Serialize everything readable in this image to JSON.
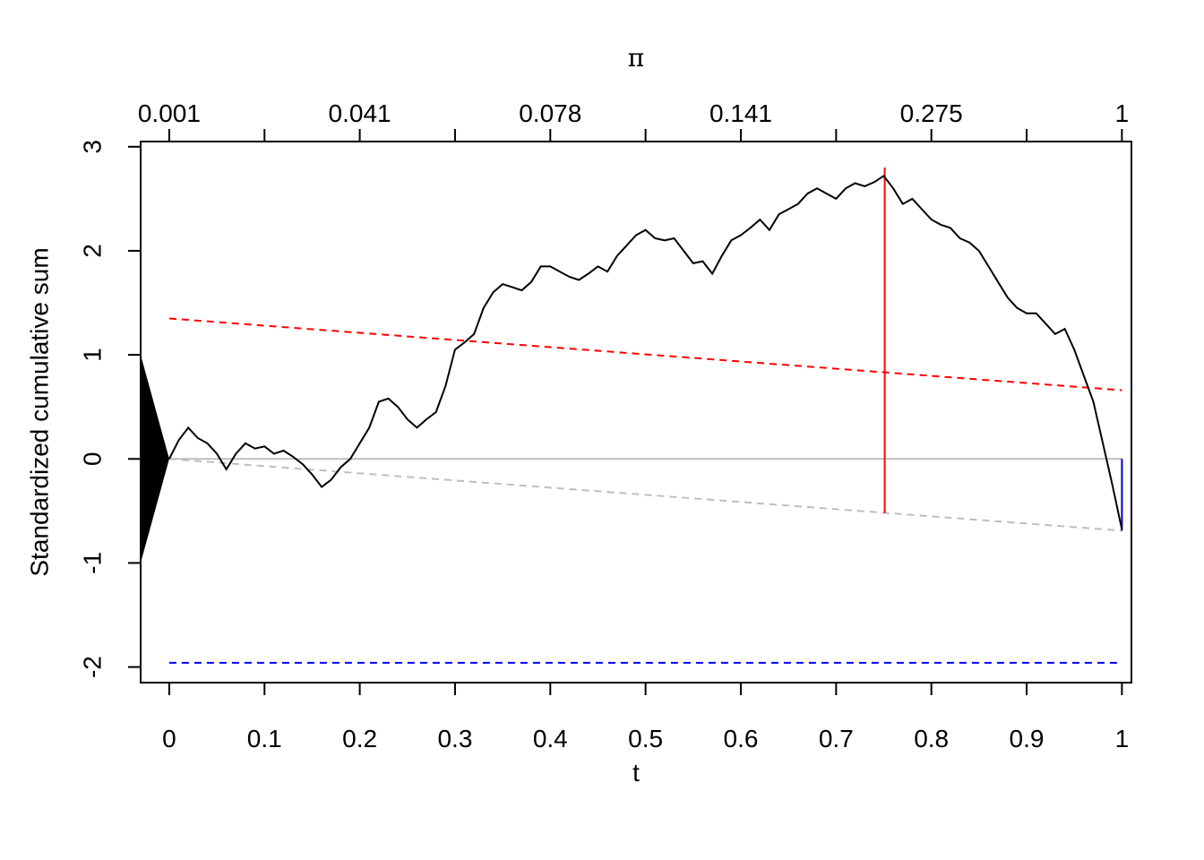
{
  "chart_data": {
    "type": "line",
    "xlabel": "t",
    "ylabel": "Standardized cumulative sum",
    "top_axis_label": "π",
    "xlim": [
      -0.03,
      1.01
    ],
    "ylim": [
      -2.15,
      3.05
    ],
    "x_ticks": [
      0,
      0.1,
      0.2,
      0.3,
      0.4,
      0.5,
      0.6,
      0.7,
      0.8,
      0.9,
      1
    ],
    "x_tick_labels": [
      "0",
      "0.1",
      "0.2",
      "0.3",
      "0.4",
      "0.5",
      "0.6",
      "0.7",
      "0.8",
      "0.9",
      "1"
    ],
    "y_ticks": [
      -2,
      -1,
      0,
      1,
      2,
      3
    ],
    "y_tick_labels": [
      "-2",
      "-1",
      "0",
      "1",
      "2",
      "3"
    ],
    "top_ticks": [
      0,
      0.1,
      0.2,
      0.3,
      0.4,
      0.5,
      0.6,
      0.7,
      0.8,
      0.9,
      1
    ],
    "top_tick_labels": [
      {
        "t": 0,
        "label": "0.001"
      },
      {
        "t": 0.2,
        "label": "0.041"
      },
      {
        "t": 0.4,
        "label": "0.078"
      },
      {
        "t": 0.6,
        "label": "0.141"
      },
      {
        "t": 0.8,
        "label": "0.275"
      },
      {
        "t": 1,
        "label": "1"
      }
    ],
    "grid": false,
    "prior_wedge": {
      "x_start": -0.03,
      "y_top": 1,
      "y_bottom": -1,
      "x_end": 0,
      "y_end": 0,
      "color": "#000000"
    },
    "series": [
      {
        "kind": "path",
        "color": "#000000",
        "x": [
          0,
          0.01,
          0.02,
          0.03,
          0.04,
          0.05,
          0.06,
          0.07,
          0.08,
          0.09,
          0.1,
          0.11,
          0.12,
          0.13,
          0.14,
          0.15,
          0.16,
          0.17,
          0.18,
          0.19,
          0.2,
          0.21,
          0.22,
          0.23,
          0.24,
          0.25,
          0.26,
          0.27,
          0.28,
          0.29,
          0.3,
          0.31,
          0.32,
          0.33,
          0.34,
          0.35,
          0.36,
          0.37,
          0.38,
          0.39,
          0.4,
          0.41,
          0.42,
          0.43,
          0.44,
          0.45,
          0.46,
          0.47,
          0.48,
          0.49,
          0.5,
          0.51,
          0.52,
          0.53,
          0.54,
          0.55,
          0.56,
          0.57,
          0.58,
          0.59,
          0.6,
          0.61,
          0.62,
          0.63,
          0.64,
          0.65,
          0.66,
          0.67,
          0.68,
          0.69,
          0.7,
          0.71,
          0.72,
          0.73,
          0.74,
          0.75,
          0.76,
          0.77,
          0.78,
          0.79,
          0.8,
          0.81,
          0.82,
          0.83,
          0.84,
          0.85,
          0.86,
          0.87,
          0.88,
          0.89,
          0.9,
          0.91,
          0.92,
          0.93,
          0.94,
          0.95,
          0.96,
          0.97,
          0.98,
          0.99,
          1
        ],
        "y": [
          0,
          0.18,
          0.3,
          0.2,
          0.15,
          0.05,
          -0.1,
          0.05,
          0.15,
          0.1,
          0.12,
          0.05,
          0.08,
          0.02,
          -0.05,
          -0.15,
          -0.27,
          -0.2,
          -0.08,
          0,
          0.15,
          0.3,
          0.55,
          0.58,
          0.5,
          0.38,
          0.3,
          0.38,
          0.45,
          0.7,
          1.05,
          1.12,
          1.2,
          1.45,
          1.6,
          1.68,
          1.65,
          1.62,
          1.7,
          1.85,
          1.85,
          1.8,
          1.75,
          1.72,
          1.78,
          1.85,
          1.8,
          1.95,
          2.05,
          2.15,
          2.2,
          2.12,
          2.1,
          2.12,
          2.0,
          1.88,
          1.9,
          1.78,
          1.95,
          2.1,
          2.15,
          2.22,
          2.3,
          2.2,
          2.35,
          2.4,
          2.45,
          2.55,
          2.6,
          2.55,
          2.5,
          2.6,
          2.65,
          2.62,
          2.66,
          2.72,
          2.6,
          2.45,
          2.5,
          2.4,
          2.3,
          2.25,
          2.22,
          2.12,
          2.08,
          2.0,
          1.85,
          1.7,
          1.55,
          1.45,
          1.4,
          1.4,
          1.3,
          1.2,
          1.25,
          1.05,
          0.8,
          0.55,
          0.15,
          -0.25,
          -0.68
        ]
      },
      {
        "kind": "line",
        "color": "#ff0000",
        "dash": true,
        "x": [
          0,
          1
        ],
        "y": [
          1.35,
          0.66
        ]
      },
      {
        "kind": "line",
        "color": "#bebebe",
        "dash": true,
        "x": [
          0,
          1
        ],
        "y": [
          0,
          -0.69
        ]
      },
      {
        "kind": "line",
        "color": "#bebebe",
        "dash": false,
        "x": [
          0,
          1
        ],
        "y": [
          0,
          0
        ]
      },
      {
        "kind": "line",
        "color": "#0000ff",
        "dash": true,
        "x": [
          0,
          1
        ],
        "y": [
          -1.96,
          -1.96
        ]
      },
      {
        "kind": "segment",
        "color": "#ff0000",
        "dash": false,
        "x": [
          0.751,
          0.751
        ],
        "y": [
          2.8,
          -0.52
        ]
      },
      {
        "kind": "segment",
        "color": "#0000cd",
        "dash": false,
        "x": [
          1,
          1
        ],
        "y": [
          0,
          -0.69
        ]
      }
    ]
  }
}
